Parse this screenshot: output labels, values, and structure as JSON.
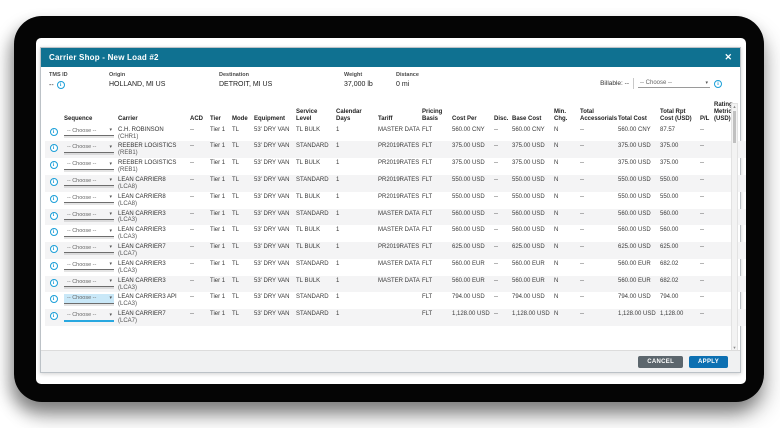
{
  "modal": {
    "title": "Carrier Shop - New Load #2",
    "close_icon": "✕",
    "summary": {
      "tms_id": {
        "label": "TMS ID",
        "value": "--"
      },
      "origin": {
        "label": "Origin",
        "value": "HOLLAND, MI US"
      },
      "destination": {
        "label": "Destination",
        "value": "DETROIT, MI US"
      },
      "weight": {
        "label": "Weight",
        "value": "37,000 lb"
      },
      "distance": {
        "label": "Distance",
        "value": "0 mi"
      },
      "billable": {
        "label": "Billable: --",
        "dropdown": "-- Choose --"
      }
    },
    "footer": {
      "cancel_label": "CANCEL",
      "apply_label": "APPLY"
    }
  },
  "table": {
    "sequence_placeholder": "-- Choose --",
    "columns": [
      "",
      "Sequence",
      "Carrier",
      "ACD",
      "Tier",
      "Mode",
      "Equipment",
      "Service Level",
      "Calendar Days",
      "Tariff",
      "Pricing Basis",
      "Cost Per",
      "Disc.",
      "Base Cost",
      "Min. Chg.",
      "Total Accessorials",
      "Total Cost",
      "Total Rpt Cost (USD)",
      "P/L",
      "Rating Metric (USD)"
    ],
    "rows": [
      {
        "carrier": "C.H. ROBINSON",
        "code": "(CHR1)",
        "acd": "--",
        "tier": "Tier 1",
        "mode": "TL",
        "equipment": "53' DRY VAN",
        "service_level": "TL BULK",
        "calendar_days": "1",
        "tariff": "MASTER DATA",
        "pricing_basis": "FLT",
        "cost_per": "560.00 CNY",
        "disc": "--",
        "base_cost": "560.00 CNY",
        "min_chg": "N",
        "total_accessorials": "--",
        "total_cost": "560.00 CNY",
        "total_rpt_cost": "87.57",
        "pl": "--",
        "rating_metric": "",
        "seq_state": "normal"
      },
      {
        "carrier": "REEBER LOGISTICS",
        "code": "(REB1)",
        "acd": "--",
        "tier": "Tier 1",
        "mode": "TL",
        "equipment": "53' DRY VAN",
        "service_level": "STANDARD",
        "calendar_days": "1",
        "tariff": "PR2019RATES",
        "pricing_basis": "FLT",
        "cost_per": "375.00 USD",
        "disc": "--",
        "base_cost": "375.00 USD",
        "min_chg": "N",
        "total_accessorials": "--",
        "total_cost": "375.00 USD",
        "total_rpt_cost": "375.00",
        "pl": "--",
        "rating_metric": "",
        "seq_state": "normal"
      },
      {
        "carrier": "REEBER LOGISTICS",
        "code": "(REB1)",
        "acd": "--",
        "tier": "Tier 1",
        "mode": "TL",
        "equipment": "53' DRY VAN",
        "service_level": "TL BULK",
        "calendar_days": "1",
        "tariff": "PR2019RATES",
        "pricing_basis": "FLT",
        "cost_per": "375.00 USD",
        "disc": "--",
        "base_cost": "375.00 USD",
        "min_chg": "N",
        "total_accessorials": "--",
        "total_cost": "375.00 USD",
        "total_rpt_cost": "375.00",
        "pl": "--",
        "rating_metric": "",
        "seq_state": "normal"
      },
      {
        "carrier": "LEAN CARRIER8",
        "code": "(LCA8)",
        "acd": "--",
        "tier": "Tier 1",
        "mode": "TL",
        "equipment": "53' DRY VAN",
        "service_level": "STANDARD",
        "calendar_days": "1",
        "tariff": "PR2019RATES",
        "pricing_basis": "FLT",
        "cost_per": "550.00 USD",
        "disc": "--",
        "base_cost": "550.00 USD",
        "min_chg": "N",
        "total_accessorials": "--",
        "total_cost": "550.00 USD",
        "total_rpt_cost": "550.00",
        "pl": "--",
        "rating_metric": "",
        "seq_state": "normal"
      },
      {
        "carrier": "LEAN CARRIER8",
        "code": "(LCA8)",
        "acd": "--",
        "tier": "Tier 1",
        "mode": "TL",
        "equipment": "53' DRY VAN",
        "service_level": "TL BULK",
        "calendar_days": "1",
        "tariff": "PR2019RATES",
        "pricing_basis": "FLT",
        "cost_per": "550.00 USD",
        "disc": "--",
        "base_cost": "550.00 USD",
        "min_chg": "N",
        "total_accessorials": "--",
        "total_cost": "550.00 USD",
        "total_rpt_cost": "550.00",
        "pl": "--",
        "rating_metric": "",
        "seq_state": "normal"
      },
      {
        "carrier": "LEAN CARRIER3",
        "code": "(LCA3)",
        "acd": "--",
        "tier": "Tier 1",
        "mode": "TL",
        "equipment": "53' DRY VAN",
        "service_level": "STANDARD",
        "calendar_days": "1",
        "tariff": "MASTER DATA",
        "pricing_basis": "FLT",
        "cost_per": "560.00 USD",
        "disc": "--",
        "base_cost": "560.00 USD",
        "min_chg": "N",
        "total_accessorials": "--",
        "total_cost": "560.00 USD",
        "total_rpt_cost": "560.00",
        "pl": "--",
        "rating_metric": "",
        "seq_state": "normal"
      },
      {
        "carrier": "LEAN CARRIER3",
        "code": "(LCA3)",
        "acd": "--",
        "tier": "Tier 1",
        "mode": "TL",
        "equipment": "53' DRY VAN",
        "service_level": "TL BULK",
        "calendar_days": "1",
        "tariff": "MASTER DATA",
        "pricing_basis": "FLT",
        "cost_per": "560.00 USD",
        "disc": "--",
        "base_cost": "560.00 USD",
        "min_chg": "N",
        "total_accessorials": "--",
        "total_cost": "560.00 USD",
        "total_rpt_cost": "560.00",
        "pl": "--",
        "rating_metric": "",
        "seq_state": "normal"
      },
      {
        "carrier": "LEAN CARRIER7",
        "code": "(LCA7)",
        "acd": "--",
        "tier": "Tier 1",
        "mode": "TL",
        "equipment": "53' DRY VAN",
        "service_level": "TL BULK",
        "calendar_days": "1",
        "tariff": "PR2019RATES",
        "pricing_basis": "FLT",
        "cost_per": "625.00 USD",
        "disc": "--",
        "base_cost": "625.00 USD",
        "min_chg": "N",
        "total_accessorials": "--",
        "total_cost": "625.00 USD",
        "total_rpt_cost": "625.00",
        "pl": "--",
        "rating_metric": "",
        "seq_state": "normal"
      },
      {
        "carrier": "LEAN CARRIER3",
        "code": "(LCA3)",
        "acd": "--",
        "tier": "Tier 1",
        "mode": "TL",
        "equipment": "53' DRY VAN",
        "service_level": "STANDARD",
        "calendar_days": "1",
        "tariff": "MASTER DATA",
        "pricing_basis": "FLT",
        "cost_per": "560.00 EUR",
        "disc": "--",
        "base_cost": "560.00 EUR",
        "min_chg": "N",
        "total_accessorials": "--",
        "total_cost": "560.00 EUR",
        "total_rpt_cost": "682.02",
        "pl": "--",
        "rating_metric": "",
        "seq_state": "normal"
      },
      {
        "carrier": "LEAN CARRIER3",
        "code": "(LCA3)",
        "acd": "--",
        "tier": "Tier 1",
        "mode": "TL",
        "equipment": "53' DRY VAN",
        "service_level": "TL BULK",
        "calendar_days": "1",
        "tariff": "MASTER DATA",
        "pricing_basis": "FLT",
        "cost_per": "560.00 EUR",
        "disc": "--",
        "base_cost": "560.00 EUR",
        "min_chg": "N",
        "total_accessorials": "--",
        "total_cost": "560.00 EUR",
        "total_rpt_cost": "682.02",
        "pl": "--",
        "rating_metric": "",
        "seq_state": "normal"
      },
      {
        "carrier": "LEAN CARRIER3 API",
        "code": "(LCA3)",
        "acd": "--",
        "tier": "Tier 1",
        "mode": "TL",
        "equipment": "53' DRY VAN",
        "service_level": "STANDARD",
        "calendar_days": "1",
        "tariff": "",
        "pricing_basis": "FLT",
        "cost_per": "794.00 USD",
        "disc": "--",
        "base_cost": "794.00 USD",
        "min_chg": "N",
        "total_accessorials": "--",
        "total_cost": "794.00 USD",
        "total_rpt_cost": "794.00",
        "pl": "--",
        "rating_metric": "",
        "seq_state": "highlight"
      },
      {
        "carrier": "LEAN CARRIER7",
        "code": "(LCA7)",
        "acd": "--",
        "tier": "Tier 1",
        "mode": "TL",
        "equipment": "53' DRY VAN",
        "service_level": "STANDARD",
        "calendar_days": "1",
        "tariff": "",
        "pricing_basis": "FLT",
        "cost_per": "1,128.00 USD",
        "disc": "--",
        "base_cost": "1,128.00 USD",
        "min_chg": "N",
        "total_accessorials": "--",
        "total_cost": "1,128.00 USD",
        "total_rpt_cost": "1,128.00",
        "pl": "--",
        "rating_metric": "",
        "seq_state": "focus"
      }
    ]
  },
  "colors": {
    "titlebar": "#0f7191",
    "accent_blue": "#1b9fd8",
    "apply_button": "#0d70b2",
    "cancel_button": "#5c666d"
  }
}
